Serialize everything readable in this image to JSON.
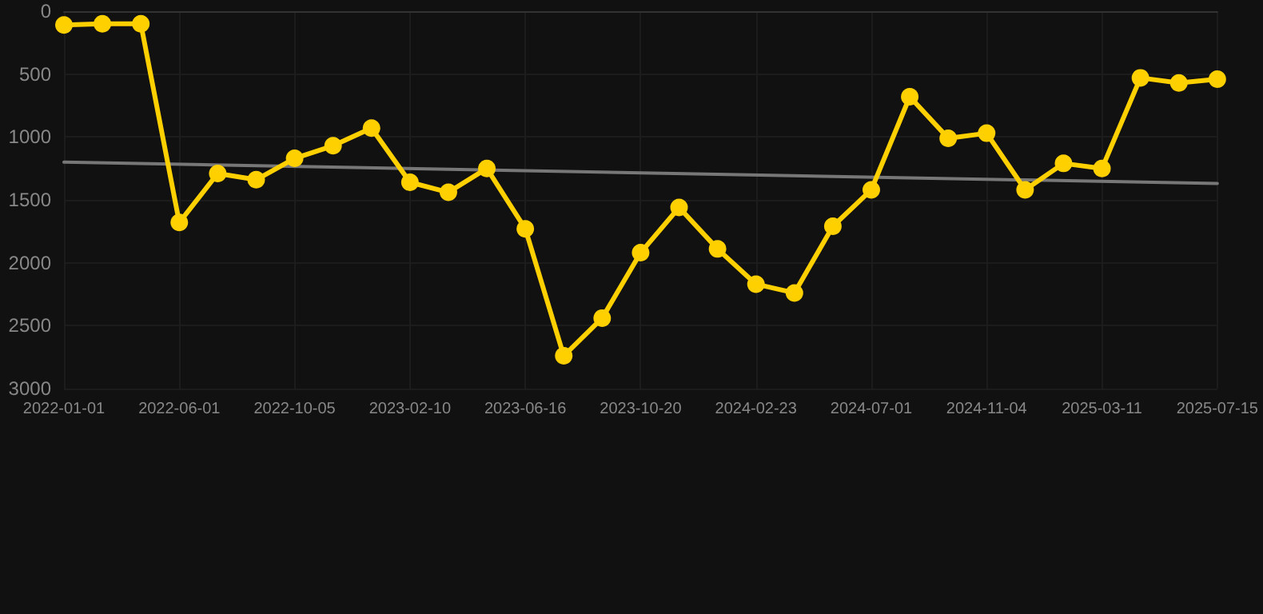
{
  "chart_data": {
    "type": "line",
    "categories": [
      "2022-01-01",
      null,
      null,
      "2022-06-01",
      null,
      null,
      "2022-10-05",
      null,
      null,
      "2023-02-10",
      null,
      null,
      "2023-06-16",
      null,
      null,
      "2023-10-20",
      null,
      null,
      "2024-02-23",
      null,
      null,
      "2024-07-01",
      null,
      null,
      "2024-11-04",
      null,
      null,
      "2025-03-11",
      null,
      null,
      "2025-07-15"
    ],
    "series": [
      {
        "color": "#ffd000",
        "marker": "circle",
        "values": [
          110,
          100,
          100,
          1680,
          1290,
          1340,
          1170,
          1070,
          930,
          1360,
          1440,
          1250,
          1730,
          2740,
          2440,
          1920,
          1560,
          1890,
          2170,
          2240,
          1710,
          1420,
          680,
          1010,
          970,
          1420,
          1210,
          1250,
          530,
          570,
          540
        ]
      },
      {
        "color": "#777777",
        "marker": "none",
        "values": [
          1200,
          null,
          null,
          null,
          null,
          null,
          null,
          null,
          null,
          null,
          null,
          null,
          null,
          null,
          null,
          null,
          null,
          null,
          null,
          null,
          null,
          null,
          null,
          null,
          null,
          null,
          null,
          null,
          null,
          null,
          1370
        ]
      }
    ],
    "ylim": [
      3000,
      0
    ],
    "yticks": [
      0,
      500,
      1000,
      1500,
      2000,
      2500,
      3000
    ],
    "grid": true,
    "line_style": "solid"
  }
}
